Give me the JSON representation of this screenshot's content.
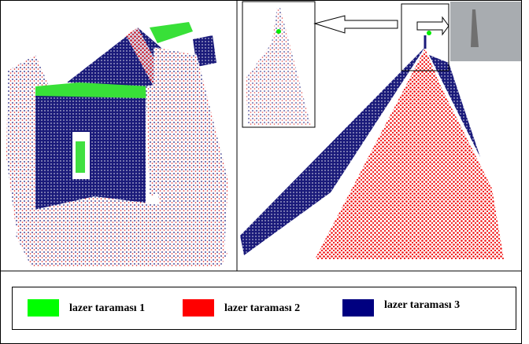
{
  "legend": {
    "items": [
      {
        "label": "lazer taraması 1",
        "color": "#00ff00"
      },
      {
        "label": "lazer taraması 2",
        "color": "#ff0000"
      },
      {
        "label": "lazer taraması 3",
        "color": "#000080"
      }
    ]
  }
}
